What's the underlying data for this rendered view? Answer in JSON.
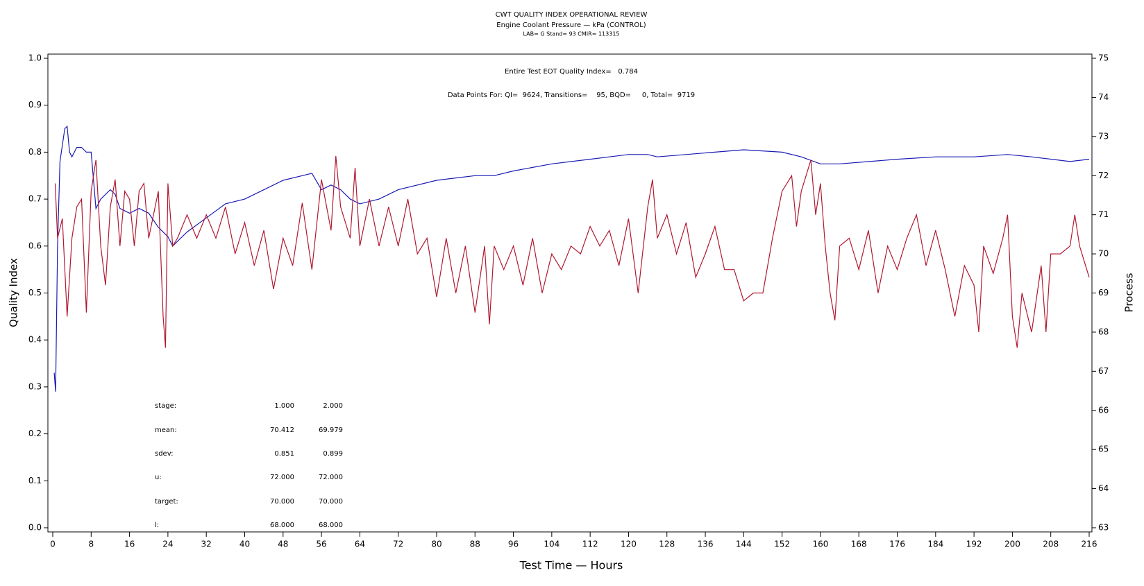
{
  "chart_data": {
    "type": "line",
    "title": "CWT QUALITY INDEX OPERATIONAL REVIEW",
    "subtitle": "Engine Coolant Pressure — kPa (CONTROL)",
    "subtitle2": "LAB= G Stand= 93 CMIR= 113315",
    "annotations": [
      "Entire Test EOT Quality Index=   0.784",
      "Data Points For: QI=  9624, Transitions=    95, BQD=     0, Total=  9719"
    ],
    "stats": [
      [
        "stage:",
        "1.000",
        "2.000"
      ],
      [
        "mean:",
        "70.412",
        "69.979"
      ],
      [
        "sdev:",
        "0.851",
        "0.899"
      ],
      [
        "u:",
        "72.000",
        "72.000"
      ],
      [
        "target:",
        "70.000",
        "70.000"
      ],
      [
        "l:",
        "68.000",
        "68.000"
      ]
    ],
    "xlabel": "Test Time — Hours",
    "ylabel": "Quality Index",
    "y2label": "Process",
    "xlim": [
      0,
      216
    ],
    "xticks": [
      0,
      8,
      16,
      24,
      32,
      40,
      48,
      56,
      64,
      72,
      80,
      88,
      96,
      104,
      112,
      120,
      128,
      136,
      144,
      152,
      160,
      168,
      176,
      184,
      192,
      200,
      208,
      216
    ],
    "ylim": [
      0,
      1
    ],
    "yticks": [
      {
        "value": 0,
        "label": "0.0"
      },
      0.1,
      0.2,
      0.3,
      0.4,
      0.5,
      0.6,
      0.7,
      0.8,
      0.9,
      {
        "value": 1,
        "label": "1.0"
      }
    ],
    "y2lim": [
      63,
      75
    ],
    "y2ticks": [
      63,
      64,
      65,
      66,
      67,
      68,
      69,
      70,
      71,
      72,
      73,
      74,
      75
    ],
    "series": [
      {
        "color": "#1a1ab4",
        "axis": "y",
        "x": [
          0.3,
          0.6,
          1,
          1.5,
          2.5,
          3,
          3.5,
          4,
          5,
          6,
          7,
          8,
          9,
          10,
          12,
          13,
          14,
          16,
          18,
          20,
          22,
          24,
          25,
          26,
          28,
          32,
          36,
          40,
          44,
          48,
          52,
          54,
          56,
          58,
          60,
          62,
          64,
          68,
          72,
          80,
          88,
          92,
          96,
          104,
          112,
          120,
          124,
          126,
          132,
          144,
          152,
          156,
          160,
          164,
          176,
          184,
          192,
          199,
          204,
          212,
          216
        ],
        "values": [
          0.33,
          0.29,
          0.6,
          0.78,
          0.85,
          0.855,
          0.8,
          0.79,
          0.81,
          0.81,
          0.8,
          0.8,
          0.68,
          0.7,
          0.72,
          0.71,
          0.68,
          0.67,
          0.68,
          0.67,
          0.64,
          0.62,
          0.6,
          0.61,
          0.63,
          0.66,
          0.69,
          0.7,
          0.72,
          0.74,
          0.75,
          0.755,
          0.72,
          0.73,
          0.72,
          0.7,
          0.69,
          0.7,
          0.72,
          0.74,
          0.75,
          0.75,
          0.76,
          0.775,
          0.785,
          0.795,
          0.795,
          0.79,
          0.795,
          0.805,
          0.8,
          0.79,
          0.775,
          0.775,
          0.785,
          0.79,
          0.79,
          0.795,
          0.79,
          0.78,
          0.785
        ]
      },
      {
        "color": "#b01830",
        "axis": "y2",
        "x": [
          0.5,
          1,
          2,
          3,
          4,
          5,
          6,
          7,
          8,
          9,
          10,
          11,
          12,
          13,
          14,
          15,
          16,
          17,
          18,
          19,
          20,
          22,
          23,
          23.5,
          24,
          25,
          26,
          28,
          30,
          32,
          34,
          36,
          38,
          40,
          42,
          44,
          46,
          48,
          50,
          52,
          54,
          56,
          58,
          59,
          60,
          62,
          63,
          64,
          66,
          68,
          70,
          72,
          74,
          76,
          78,
          80,
          82,
          84,
          86,
          88,
          90,
          91,
          92,
          94,
          96,
          98,
          100,
          102,
          104,
          106,
          108,
          110,
          112,
          114,
          116,
          118,
          120,
          122,
          124,
          125,
          126,
          128,
          130,
          132,
          134,
          136,
          138,
          140,
          142,
          144,
          146,
          148,
          150,
          152,
          154,
          155,
          156,
          158,
          159,
          160,
          161,
          162,
          163,
          164,
          166,
          168,
          170,
          172,
          174,
          176,
          178,
          180,
          182,
          184,
          186,
          188,
          190,
          192,
          193,
          194,
          196,
          198,
          199,
          200,
          201,
          202,
          204,
          206,
          207,
          208,
          210,
          212,
          213,
          214,
          216
        ],
        "values": [
          71.8,
          70.4,
          70.9,
          68.4,
          70.4,
          71.2,
          71.4,
          68.5,
          71.6,
          72.4,
          70.2,
          69.2,
          71.2,
          71.9,
          70.2,
          71.6,
          71.4,
          70.2,
          71.6,
          71.8,
          70.4,
          71.6,
          68.4,
          67.6,
          71.8,
          70.2,
          70.4,
          71.0,
          70.4,
          71.0,
          70.4,
          71.2,
          70.0,
          70.8,
          69.7,
          70.6,
          69.1,
          70.4,
          69.7,
          71.3,
          69.6,
          71.9,
          70.6,
          72.5,
          71.2,
          70.4,
          72.2,
          70.2,
          71.4,
          70.2,
          71.2,
          70.2,
          71.4,
          70.0,
          70.4,
          68.9,
          70.4,
          69.0,
          70.2,
          68.5,
          70.2,
          68.2,
          70.2,
          69.6,
          70.2,
          69.2,
          70.4,
          69.0,
          70.0,
          69.6,
          70.2,
          70.0,
          70.7,
          70.2,
          70.6,
          69.7,
          70.9,
          69.0,
          71.2,
          71.9,
          70.4,
          71.0,
          70.0,
          70.8,
          69.4,
          70.0,
          70.7,
          69.6,
          69.6,
          68.8,
          69.0,
          69.0,
          70.4,
          71.6,
          72.0,
          70.7,
          71.6,
          72.4,
          71.0,
          71.8,
          70.2,
          69.0,
          68.3,
          70.2,
          70.4,
          69.6,
          70.6,
          69.0,
          70.2,
          69.6,
          70.4,
          71.0,
          69.7,
          70.6,
          69.6,
          68.4,
          69.7,
          69.2,
          68.0,
          70.2,
          69.5,
          70.4,
          71.0,
          68.4,
          67.6,
          69.0,
          68.0,
          69.7,
          68.0,
          70.0,
          70.0,
          70.2,
          71.0,
          70.2,
          69.4
        ]
      }
    ]
  }
}
